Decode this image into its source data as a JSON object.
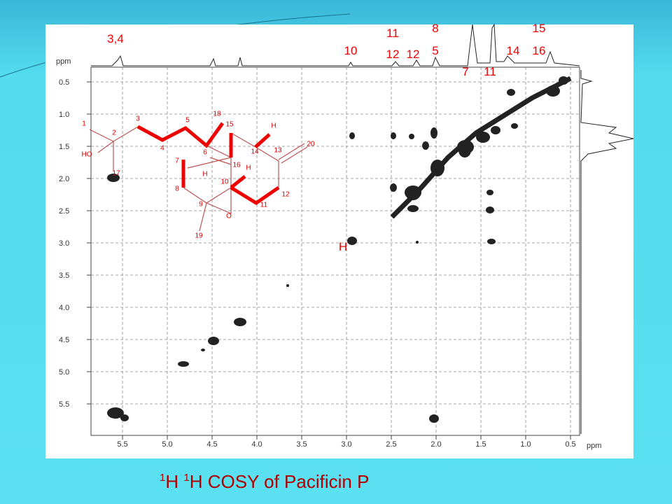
{
  "spectrum": {
    "unit_top": "ppm",
    "unit_bottom": "ppm",
    "y_ticks": [
      "0.5",
      "1.0",
      "1.5",
      "2.0",
      "2.5",
      "3.0",
      "3.5",
      "4.0",
      "4.5",
      "5.0",
      "5.5"
    ],
    "x_ticks": [
      "5.5",
      "5.0",
      "4.5",
      "4.0",
      "3.5",
      "3.0",
      "2.5",
      "2.0",
      "1.5",
      "1.0",
      "0.5"
    ]
  },
  "assignments": [
    "3,4",
    "10",
    "11",
    "12",
    "12",
    "8",
    "5",
    "7",
    "11",
    "14",
    "15",
    "16",
    "H"
  ],
  "structure": {
    "atoms": [
      "1",
      "2",
      "3",
      "4",
      "5",
      "6",
      "7",
      "8",
      "9",
      "10",
      "11",
      "12",
      "13",
      "14",
      "15",
      "16",
      "17",
      "18",
      "19",
      "20"
    ],
    "labels": [
      "HO",
      "H",
      "H",
      "H",
      "O"
    ]
  },
  "title": {
    "sup1": "1",
    "part1": "H ",
    "sup2": "1",
    "part2": "H COSY of Pacificin P"
  }
}
